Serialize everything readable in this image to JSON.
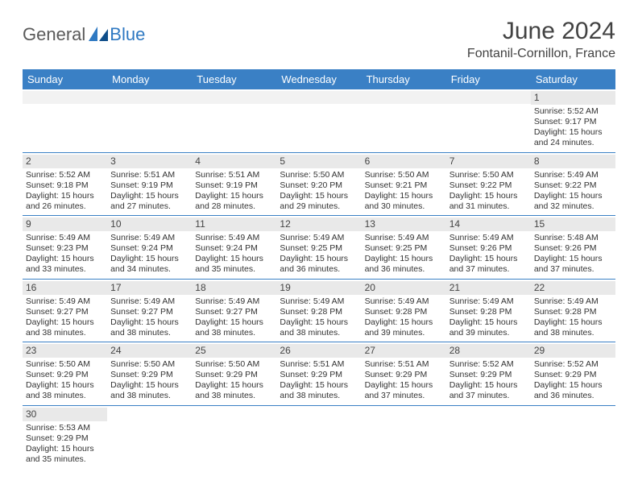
{
  "brand": {
    "part1": "General",
    "part2": "Blue"
  },
  "title": {
    "month": "June 2024",
    "location": "Fontanil-Cornillon, France"
  },
  "colors": {
    "header_bg": "#3a80c5",
    "band_bg": "#e9e9e9",
    "text": "#333333",
    "brand_gray": "#5a5a5a",
    "brand_blue": "#2f79c2"
  },
  "weekdays": [
    "Sunday",
    "Monday",
    "Tuesday",
    "Wednesday",
    "Thursday",
    "Friday",
    "Saturday"
  ],
  "weeks": [
    [
      {
        "n": "",
        "sunrise": "",
        "sunset": "",
        "daylight": ""
      },
      {
        "n": "",
        "sunrise": "",
        "sunset": "",
        "daylight": ""
      },
      {
        "n": "",
        "sunrise": "",
        "sunset": "",
        "daylight": ""
      },
      {
        "n": "",
        "sunrise": "",
        "sunset": "",
        "daylight": ""
      },
      {
        "n": "",
        "sunrise": "",
        "sunset": "",
        "daylight": ""
      },
      {
        "n": "",
        "sunrise": "",
        "sunset": "",
        "daylight": ""
      },
      {
        "n": "1",
        "sunrise": "Sunrise: 5:52 AM",
        "sunset": "Sunset: 9:17 PM",
        "daylight": "Daylight: 15 hours and 24 minutes."
      }
    ],
    [
      {
        "n": "2",
        "sunrise": "Sunrise: 5:52 AM",
        "sunset": "Sunset: 9:18 PM",
        "daylight": "Daylight: 15 hours and 26 minutes."
      },
      {
        "n": "3",
        "sunrise": "Sunrise: 5:51 AM",
        "sunset": "Sunset: 9:19 PM",
        "daylight": "Daylight: 15 hours and 27 minutes."
      },
      {
        "n": "4",
        "sunrise": "Sunrise: 5:51 AM",
        "sunset": "Sunset: 9:19 PM",
        "daylight": "Daylight: 15 hours and 28 minutes."
      },
      {
        "n": "5",
        "sunrise": "Sunrise: 5:50 AM",
        "sunset": "Sunset: 9:20 PM",
        "daylight": "Daylight: 15 hours and 29 minutes."
      },
      {
        "n": "6",
        "sunrise": "Sunrise: 5:50 AM",
        "sunset": "Sunset: 9:21 PM",
        "daylight": "Daylight: 15 hours and 30 minutes."
      },
      {
        "n": "7",
        "sunrise": "Sunrise: 5:50 AM",
        "sunset": "Sunset: 9:22 PM",
        "daylight": "Daylight: 15 hours and 31 minutes."
      },
      {
        "n": "8",
        "sunrise": "Sunrise: 5:49 AM",
        "sunset": "Sunset: 9:22 PM",
        "daylight": "Daylight: 15 hours and 32 minutes."
      }
    ],
    [
      {
        "n": "9",
        "sunrise": "Sunrise: 5:49 AM",
        "sunset": "Sunset: 9:23 PM",
        "daylight": "Daylight: 15 hours and 33 minutes."
      },
      {
        "n": "10",
        "sunrise": "Sunrise: 5:49 AM",
        "sunset": "Sunset: 9:24 PM",
        "daylight": "Daylight: 15 hours and 34 minutes."
      },
      {
        "n": "11",
        "sunrise": "Sunrise: 5:49 AM",
        "sunset": "Sunset: 9:24 PM",
        "daylight": "Daylight: 15 hours and 35 minutes."
      },
      {
        "n": "12",
        "sunrise": "Sunrise: 5:49 AM",
        "sunset": "Sunset: 9:25 PM",
        "daylight": "Daylight: 15 hours and 36 minutes."
      },
      {
        "n": "13",
        "sunrise": "Sunrise: 5:49 AM",
        "sunset": "Sunset: 9:25 PM",
        "daylight": "Daylight: 15 hours and 36 minutes."
      },
      {
        "n": "14",
        "sunrise": "Sunrise: 5:49 AM",
        "sunset": "Sunset: 9:26 PM",
        "daylight": "Daylight: 15 hours and 37 minutes."
      },
      {
        "n": "15",
        "sunrise": "Sunrise: 5:48 AM",
        "sunset": "Sunset: 9:26 PM",
        "daylight": "Daylight: 15 hours and 37 minutes."
      }
    ],
    [
      {
        "n": "16",
        "sunrise": "Sunrise: 5:49 AM",
        "sunset": "Sunset: 9:27 PM",
        "daylight": "Daylight: 15 hours and 38 minutes."
      },
      {
        "n": "17",
        "sunrise": "Sunrise: 5:49 AM",
        "sunset": "Sunset: 9:27 PM",
        "daylight": "Daylight: 15 hours and 38 minutes."
      },
      {
        "n": "18",
        "sunrise": "Sunrise: 5:49 AM",
        "sunset": "Sunset: 9:27 PM",
        "daylight": "Daylight: 15 hours and 38 minutes."
      },
      {
        "n": "19",
        "sunrise": "Sunrise: 5:49 AM",
        "sunset": "Sunset: 9:28 PM",
        "daylight": "Daylight: 15 hours and 38 minutes."
      },
      {
        "n": "20",
        "sunrise": "Sunrise: 5:49 AM",
        "sunset": "Sunset: 9:28 PM",
        "daylight": "Daylight: 15 hours and 39 minutes."
      },
      {
        "n": "21",
        "sunrise": "Sunrise: 5:49 AM",
        "sunset": "Sunset: 9:28 PM",
        "daylight": "Daylight: 15 hours and 39 minutes."
      },
      {
        "n": "22",
        "sunrise": "Sunrise: 5:49 AM",
        "sunset": "Sunset: 9:28 PM",
        "daylight": "Daylight: 15 hours and 38 minutes."
      }
    ],
    [
      {
        "n": "23",
        "sunrise": "Sunrise: 5:50 AM",
        "sunset": "Sunset: 9:29 PM",
        "daylight": "Daylight: 15 hours and 38 minutes."
      },
      {
        "n": "24",
        "sunrise": "Sunrise: 5:50 AM",
        "sunset": "Sunset: 9:29 PM",
        "daylight": "Daylight: 15 hours and 38 minutes."
      },
      {
        "n": "25",
        "sunrise": "Sunrise: 5:50 AM",
        "sunset": "Sunset: 9:29 PM",
        "daylight": "Daylight: 15 hours and 38 minutes."
      },
      {
        "n": "26",
        "sunrise": "Sunrise: 5:51 AM",
        "sunset": "Sunset: 9:29 PM",
        "daylight": "Daylight: 15 hours and 38 minutes."
      },
      {
        "n": "27",
        "sunrise": "Sunrise: 5:51 AM",
        "sunset": "Sunset: 9:29 PM",
        "daylight": "Daylight: 15 hours and 37 minutes."
      },
      {
        "n": "28",
        "sunrise": "Sunrise: 5:52 AM",
        "sunset": "Sunset: 9:29 PM",
        "daylight": "Daylight: 15 hours and 37 minutes."
      },
      {
        "n": "29",
        "sunrise": "Sunrise: 5:52 AM",
        "sunset": "Sunset: 9:29 PM",
        "daylight": "Daylight: 15 hours and 36 minutes."
      }
    ],
    [
      {
        "n": "30",
        "sunrise": "Sunrise: 5:53 AM",
        "sunset": "Sunset: 9:29 PM",
        "daylight": "Daylight: 15 hours and 35 minutes."
      },
      {
        "n": "",
        "sunrise": "",
        "sunset": "",
        "daylight": ""
      },
      {
        "n": "",
        "sunrise": "",
        "sunset": "",
        "daylight": ""
      },
      {
        "n": "",
        "sunrise": "",
        "sunset": "",
        "daylight": ""
      },
      {
        "n": "",
        "sunrise": "",
        "sunset": "",
        "daylight": ""
      },
      {
        "n": "",
        "sunrise": "",
        "sunset": "",
        "daylight": ""
      },
      {
        "n": "",
        "sunrise": "",
        "sunset": "",
        "daylight": ""
      }
    ]
  ]
}
